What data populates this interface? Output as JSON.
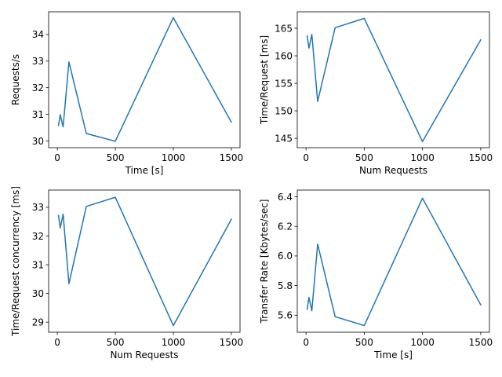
{
  "colors": {
    "series": "#1f77b4",
    "axes": "#000000",
    "background": "#ffffff"
  },
  "chart_data": [
    {
      "type": "line",
      "xlabel": "Time [s]",
      "ylabel": "Requests/s",
      "xlim": [
        -75,
        1575
      ],
      "ylim": [
        29.75,
        34.85
      ],
      "xticks": [
        0,
        500,
        1000,
        1500
      ],
      "yticks": [
        30,
        31,
        32,
        33,
        34
      ],
      "grid": false,
      "series": [
        {
          "x": [
            10,
            25,
            50,
            100,
            250,
            500,
            1000,
            1500
          ],
          "y": [
            30.58,
            30.99,
            30.53,
            32.97,
            30.28,
            29.99,
            34.63,
            30.71
          ]
        }
      ]
    },
    {
      "type": "line",
      "xlabel": "Num Requests",
      "ylabel": "Time/Request [ms]",
      "xlim": [
        -75,
        1575
      ],
      "ylim": [
        143.3,
        168.0
      ],
      "xticks": [
        0,
        500,
        1000,
        1500
      ],
      "yticks": [
        145,
        150,
        155,
        160,
        165
      ],
      "grid": false,
      "series": [
        {
          "x": [
            10,
            25,
            50,
            100,
            250,
            500,
            1000,
            1500
          ],
          "y": [
            163.6,
            161.4,
            163.9,
            151.7,
            165.1,
            166.8,
            144.4,
            162.9
          ]
        }
      ]
    },
    {
      "type": "line",
      "xlabel": "Num Requests",
      "ylabel": "Time/Request concurrency [ms]",
      "xlim": [
        -75,
        1575
      ],
      "ylim": [
        28.65,
        33.6
      ],
      "xticks": [
        0,
        500,
        1000,
        1500
      ],
      "yticks": [
        29,
        30,
        31,
        32,
        33
      ],
      "grid": false,
      "series": [
        {
          "x": [
            10,
            25,
            50,
            100,
            250,
            500,
            1000,
            1500
          ],
          "y": [
            32.72,
            32.28,
            32.76,
            30.34,
            33.03,
            33.35,
            28.88,
            32.58
          ]
        }
      ]
    },
    {
      "type": "line",
      "xlabel": "Time [s]",
      "ylabel": "Transfer Rate [Kbytes/sec]",
      "xlim": [
        -75,
        1575
      ],
      "ylim": [
        5.485,
        6.445
      ],
      "xticks": [
        0,
        500,
        1000,
        1500
      ],
      "yticks": [
        5.6,
        5.8,
        6.0,
        6.2,
        6.4
      ],
      "grid": false,
      "series": [
        {
          "x": [
            10,
            25,
            50,
            100,
            250,
            500,
            1000,
            1500
          ],
          "y": [
            5.64,
            5.72,
            5.63,
            6.08,
            5.59,
            5.53,
            6.39,
            5.67
          ]
        }
      ]
    }
  ]
}
